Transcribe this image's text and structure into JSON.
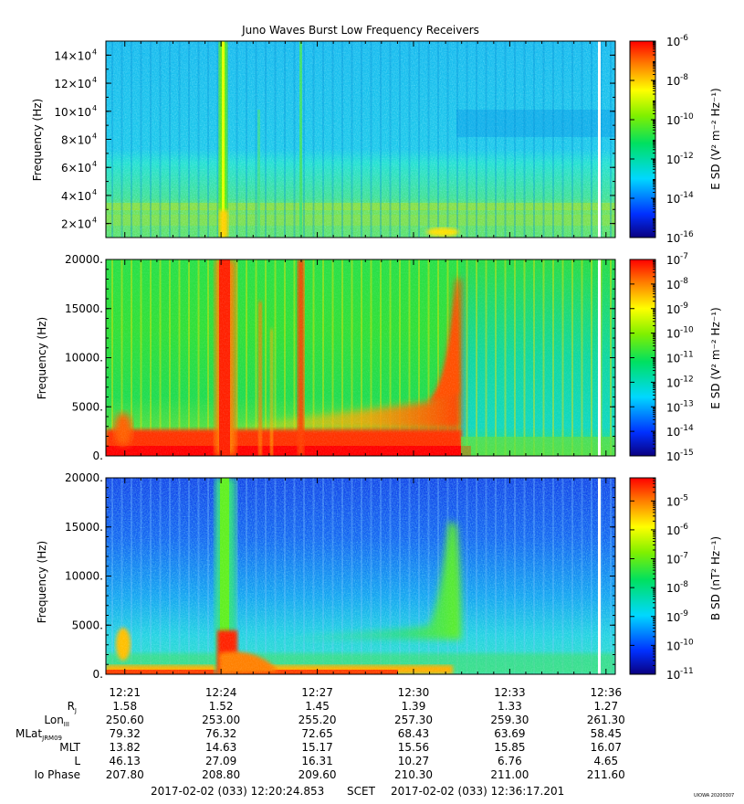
{
  "title": "Juno Waves Burst Low Frequency Receivers",
  "version_stamp": "UIOWA 20200307",
  "colors": {
    "white_line": "#ffffff",
    "axis": "#000000"
  },
  "chart_data": [
    {
      "type": "heatmap",
      "ylabel": "Frequency (Hz)",
      "ylim": [
        10000,
        150000
      ],
      "y_ticks": [
        {
          "value": 20000,
          "mant": "2",
          "exp": "4"
        },
        {
          "value": 40000,
          "mant": "4",
          "exp": "4"
        },
        {
          "value": 60000,
          "mant": "6",
          "exp": "4"
        },
        {
          "value": 80000,
          "mant": "8",
          "exp": "4"
        },
        {
          "value": 100000,
          "mant": "10",
          "exp": "4"
        },
        {
          "value": 120000,
          "mant": "12",
          "exp": "4"
        },
        {
          "value": 140000,
          "mant": "14",
          "exp": "4"
        }
      ],
      "colorbar": {
        "label": "E SD (V² m⁻² Hz⁻¹)",
        "log_min": -16,
        "log_max": -6,
        "tick_exps": [
          "-16",
          "-14",
          "-12",
          "-10",
          "-8",
          "-6"
        ]
      }
    },
    {
      "type": "heatmap",
      "ylabel": "Frequency (Hz)",
      "ylim": [
        0,
        20000
      ],
      "y_ticks": [
        "0.",
        "5000.",
        "10000.",
        "15000.",
        "20000."
      ],
      "colorbar": {
        "label": "E SD (V² m⁻² Hz⁻¹)",
        "log_min": -15,
        "log_max": -7,
        "tick_exps": [
          "-15",
          "-14",
          "-13",
          "-12",
          "-11",
          "-10",
          "-9",
          "-8",
          "-7"
        ]
      }
    },
    {
      "type": "heatmap",
      "ylabel": "Frequency (Hz)",
      "ylim": [
        0,
        20000
      ],
      "y_ticks": [
        "0.",
        "5000.",
        "10000.",
        "15000.",
        "20000."
      ],
      "colorbar": {
        "label": "B SD (nT² Hz⁻¹)",
        "log_min": -11,
        "log_max": -4.2,
        "tick_exps": [
          "-11",
          "-10",
          "-9",
          "-8",
          "-7",
          "-6",
          "-5"
        ]
      }
    }
  ],
  "time_axis": {
    "start_min": 740.41,
    "end_min": 756.29,
    "ticks": [
      "12:21",
      "12:24",
      "12:27",
      "12:30",
      "12:33",
      "12:36"
    ],
    "white_line_time": "12:35.8"
  },
  "ephemeris": {
    "rows": [
      {
        "label": "R",
        "sub": "J",
        "values": [
          "1.58",
          "1.52",
          "1.45",
          "1.39",
          "1.33",
          "1.27"
        ]
      },
      {
        "label": "Lon",
        "sub": "III",
        "values": [
          "250.60",
          "253.00",
          "255.20",
          "257.30",
          "259.30",
          "261.30"
        ]
      },
      {
        "label": "MLat",
        "sub": "JRM09",
        "values": [
          "79.32",
          "76.32",
          "72.65",
          "68.43",
          "63.69",
          "58.45"
        ]
      },
      {
        "label": "MLT",
        "sub": "",
        "values": [
          "13.82",
          "14.63",
          "15.17",
          "15.56",
          "15.85",
          "16.07"
        ]
      },
      {
        "label": "L",
        "sub": "",
        "values": [
          "46.13",
          "27.09",
          "16.31",
          "10.27",
          "6.76",
          "4.65"
        ]
      },
      {
        "label": "Io Phase",
        "sub": "",
        "values": [
          "207.80",
          "208.80",
          "209.60",
          "210.30",
          "211.00",
          "211.60"
        ]
      }
    ]
  },
  "footer": {
    "start": "2017-02-02 (033) 12:20:24.853",
    "label": "SCET",
    "end": "2017-02-02 (033) 12:36:17.201"
  }
}
